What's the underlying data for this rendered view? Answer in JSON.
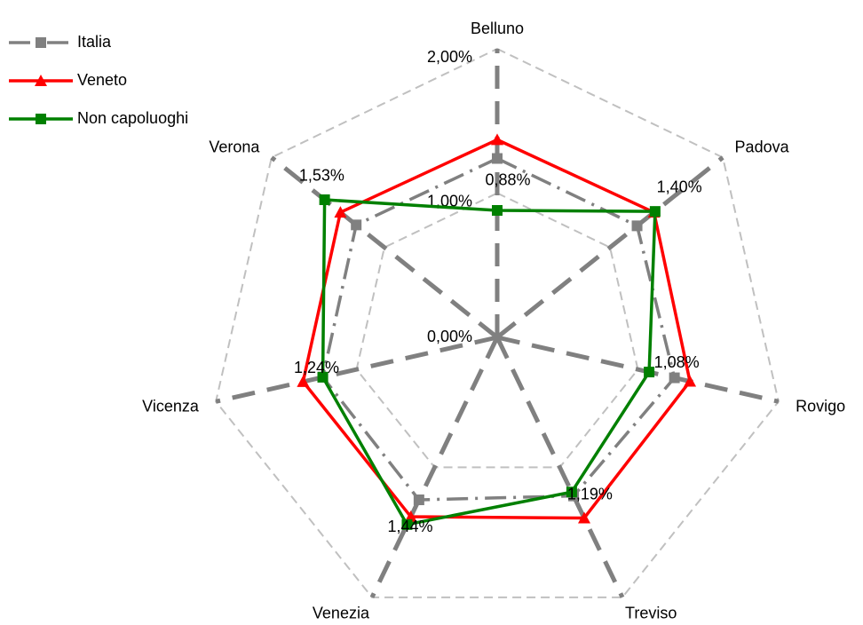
{
  "chart_data": {
    "type": "radar",
    "categories": [
      "Belluno",
      "Padova",
      "Rovigo",
      "Treviso",
      "Venezia",
      "Vicenza",
      "Verona"
    ],
    "ylim": [
      0,
      2
    ],
    "yticks": [
      {
        "value": 0,
        "label": "0,00%"
      },
      {
        "value": 1,
        "label": "1,00%"
      },
      {
        "value": 2,
        "label": "2,00%"
      }
    ],
    "grid": true,
    "legend": "top-left",
    "series": [
      {
        "name": "Italia",
        "color": "#808080",
        "values": [
          1.24,
          1.24,
          1.26,
          1.22,
          1.25,
          1.24,
          1.25
        ]
      },
      {
        "name": "Veneto",
        "color": "#ff0000",
        "values": [
          1.37,
          1.39,
          1.37,
          1.39,
          1.38,
          1.38,
          1.39
        ]
      },
      {
        "name": "Non capoluoghi",
        "color": "#008000",
        "values": [
          0.88,
          1.4,
          1.08,
          1.19,
          1.44,
          1.24,
          1.53
        ],
        "value_labels": [
          "0,88%",
          "1,40%",
          "1,08%",
          "1,19%",
          "1,44%",
          "1,24%",
          "1,53%"
        ]
      }
    ]
  }
}
